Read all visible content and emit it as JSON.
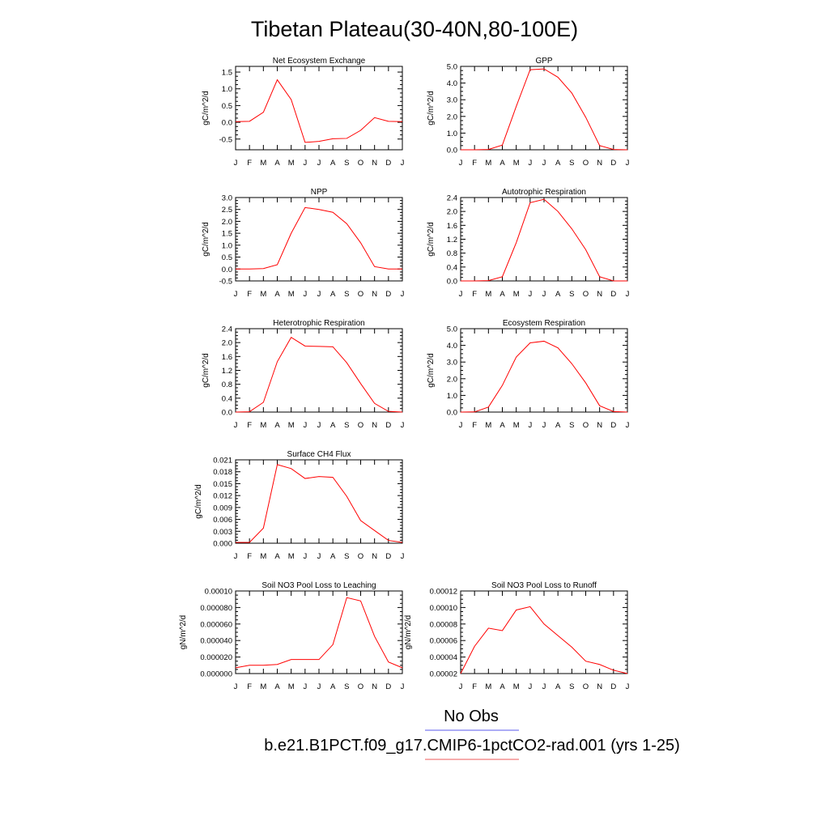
{
  "title": "Tibetan Plateau(30-40N,80-100E)",
  "legend": {
    "obs_label": "No Obs",
    "obs_color": "#7b7bf0",
    "model_label": "b.e21.B1PCT.f09_g17.CMIP6-1pctCO2-rad.001 (yrs 1-25)",
    "model_color": "#f07b7b"
  },
  "series_color": "#ff0000",
  "months": [
    "J",
    "F",
    "M",
    "A",
    "M",
    "J",
    "J",
    "A",
    "S",
    "O",
    "N",
    "D",
    "J"
  ],
  "chart_data": [
    {
      "type": "line",
      "title": "Net Ecosystem Exchange",
      "ylabel": "gC/m^2/d",
      "ylim": [
        -0.82,
        1.67
      ],
      "yticks": [
        -0.5,
        0.0,
        0.5,
        1.0,
        1.5
      ],
      "ytick_labels": [
        "-0.5",
        "0.0",
        "0.5",
        "1.0",
        "1.5"
      ],
      "values": [
        0.02,
        0.03,
        0.3,
        1.27,
        0.68,
        -0.6,
        -0.57,
        -0.49,
        -0.48,
        -0.24,
        0.14,
        0.03,
        0.02
      ]
    },
    {
      "type": "line",
      "title": "GPP",
      "ylabel": "gC/m^2/d",
      "ylim": [
        0.0,
        5.0
      ],
      "yticks": [
        0.0,
        1.0,
        2.0,
        3.0,
        4.0,
        5.0
      ],
      "ytick_labels": [
        "0.0",
        "1.0",
        "2.0",
        "3.0",
        "4.0",
        "5.0"
      ],
      "values": [
        0.0,
        0.0,
        0.02,
        0.28,
        2.6,
        4.8,
        4.85,
        4.35,
        3.4,
        1.95,
        0.25,
        0.02,
        0.0
      ]
    },
    {
      "type": "line",
      "title": "NPP",
      "ylabel": "gC/m^2/d",
      "ylim": [
        -0.5,
        3.0
      ],
      "yticks": [
        -0.5,
        0.0,
        0.5,
        1.0,
        1.5,
        2.0,
        2.5,
        3.0
      ],
      "ytick_labels": [
        "-0.5",
        "0.0",
        "0.5",
        "1.0",
        "1.5",
        "2.0",
        "2.5",
        "3.0"
      ],
      "values": [
        0.0,
        0.0,
        0.02,
        0.18,
        1.5,
        2.58,
        2.5,
        2.38,
        1.9,
        1.1,
        0.1,
        0.0,
        0.0
      ]
    },
    {
      "type": "line",
      "title": "Autotrophic Respiration",
      "ylabel": "gC/m^2/d",
      "ylim": [
        0.0,
        2.4
      ],
      "yticks": [
        0.0,
        0.4,
        0.8,
        1.2,
        1.6,
        2.0,
        2.4
      ],
      "ytick_labels": [
        "0.0",
        "0.4",
        "0.8",
        "1.2",
        "1.6",
        "2.0",
        "2.4"
      ],
      "values": [
        0.0,
        0.0,
        0.01,
        0.12,
        1.1,
        2.25,
        2.35,
        2.0,
        1.5,
        0.9,
        0.12,
        0.0,
        0.0
      ]
    },
    {
      "type": "line",
      "title": "Heterotrophic Respiration",
      "ylabel": "gC/m^2/d",
      "ylim": [
        0.0,
        2.4
      ],
      "yticks": [
        0.0,
        0.4,
        0.8,
        1.2,
        1.6,
        2.0,
        2.4
      ],
      "ytick_labels": [
        "0.0",
        "0.4",
        "0.8",
        "1.2",
        "1.6",
        "2.0",
        "2.4"
      ],
      "values": [
        0.0,
        0.01,
        0.28,
        1.45,
        2.15,
        1.9,
        1.89,
        1.88,
        1.42,
        0.82,
        0.25,
        0.02,
        0.0
      ]
    },
    {
      "type": "line",
      "title": "Ecosystem Respiration",
      "ylabel": "gC/m^2/d",
      "ylim": [
        0.0,
        5.0
      ],
      "yticks": [
        0.0,
        1.0,
        2.0,
        3.0,
        4.0,
        5.0
      ],
      "ytick_labels": [
        "0.0",
        "1.0",
        "2.0",
        "3.0",
        "4.0",
        "5.0"
      ],
      "values": [
        0.0,
        0.01,
        0.3,
        1.6,
        3.3,
        4.15,
        4.25,
        3.85,
        2.9,
        1.75,
        0.38,
        0.03,
        0.0
      ]
    },
    {
      "type": "line",
      "title": "Surface CH4 Flux",
      "ylabel": "gC/m^2/d",
      "ylim": [
        0.0,
        0.021
      ],
      "yticks": [
        0.0,
        0.003,
        0.006,
        0.009,
        0.012,
        0.015,
        0.018,
        0.021
      ],
      "ytick_labels": [
        "0.000",
        "0.003",
        "0.006",
        "0.009",
        "0.012",
        "0.015",
        "0.018",
        "0.021"
      ],
      "values": [
        0.0002,
        0.0002,
        0.0038,
        0.0198,
        0.0188,
        0.0163,
        0.0168,
        0.0166,
        0.0118,
        0.0057,
        0.0032,
        0.0007,
        0.0002
      ]
    },
    {
      "type": "line",
      "title": "Soil NO3 Pool Loss to Leaching",
      "ylabel": "gN/m^2/d",
      "ylim": [
        0.0,
        0.0001
      ],
      "yticks": [
        0.0,
        2e-05,
        4e-05,
        6e-05,
        8e-05,
        0.0001
      ],
      "ytick_labels": [
        "0.000000",
        "0.000020",
        "0.000040",
        "0.000060",
        "0.000080",
        "0.00010"
      ],
      "values": [
        7e-06,
        1e-05,
        1e-05,
        1.1e-05,
        1.7e-05,
        1.7e-05,
        1.7e-05,
        3.5e-05,
        9.2e-05,
        8.8e-05,
        4.5e-05,
        1.4e-05,
        7e-06
      ]
    },
    {
      "type": "line",
      "title": "Soil NO3 Pool Loss to Runoff",
      "ylabel": "gN/m^2/d",
      "ylim": [
        2e-05,
        0.00012
      ],
      "yticks": [
        2e-05,
        4e-05,
        6e-05,
        8e-05,
        0.0001,
        0.00012
      ],
      "ytick_labels": [
        "0.00002",
        "0.00004",
        "0.00006",
        "0.00008",
        "0.00010",
        "0.00012"
      ],
      "values": [
        2e-05,
        5.3e-05,
        7.5e-05,
        7.2e-05,
        9.7e-05,
        0.000101,
        8e-05,
        6.6e-05,
        5.2e-05,
        3.5e-05,
        3.1e-05,
        2.4e-05,
        2e-05
      ]
    }
  ]
}
